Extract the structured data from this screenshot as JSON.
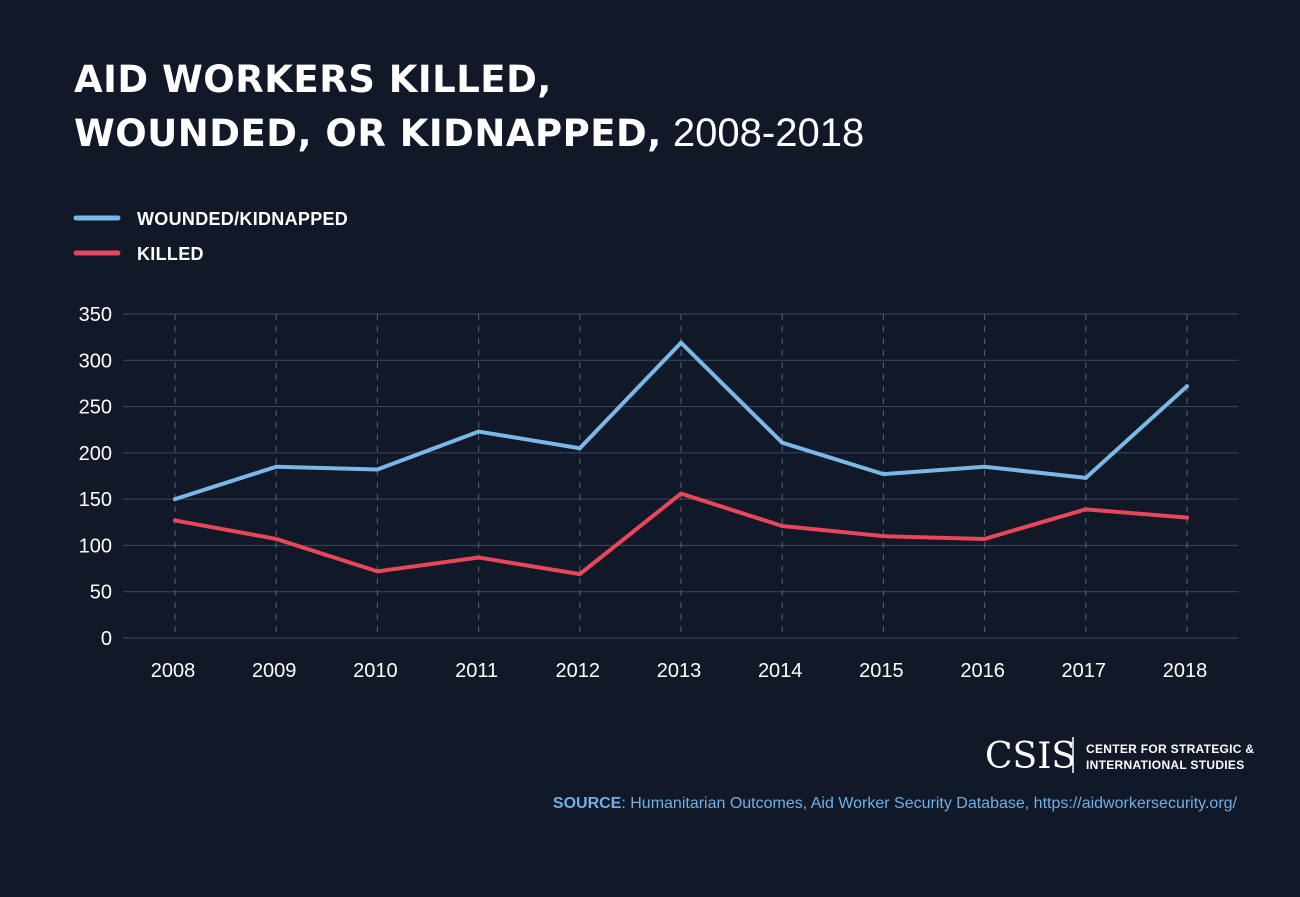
{
  "title": {
    "line1": "AID WORKERS KILLED,",
    "line2_bold": "WOUNDED, OR KIDNAPPED,",
    "line2_light": " 2008-2018"
  },
  "chart_data": {
    "type": "line",
    "title": "AID WORKERS KILLED, WOUNDED, OR KIDNAPPED, 2008-2018",
    "xlabel": "",
    "ylabel": "",
    "x": [
      "2008",
      "2009",
      "2010",
      "2011",
      "2012",
      "2013",
      "2014",
      "2015",
      "2016",
      "2017",
      "2018"
    ],
    "ylim": [
      0,
      350
    ],
    "yticks": [
      0,
      50,
      100,
      150,
      200,
      250,
      300,
      350
    ],
    "grid": true,
    "legend_position": "top-left",
    "series": [
      {
        "name": "WOUNDED/KIDNAPPED",
        "color": "#7ab8e8",
        "values": [
          150,
          185,
          182,
          223,
          205,
          319,
          211,
          177,
          185,
          173,
          272
        ]
      },
      {
        "name": "KILLED",
        "color": "#e8465a",
        "values": [
          127,
          107,
          72,
          87,
          69,
          156,
          121,
          110,
          107,
          139,
          130
        ]
      }
    ]
  },
  "logo": {
    "mark": "CSIS",
    "line1": "CENTER FOR STRATEGIC &",
    "line2": "INTERNATIONAL STUDIES"
  },
  "source": {
    "label": "SOURCE",
    "text": ": Humanitarian Outcomes, Aid Worker Security Database, https://aidworkersecurity.org/"
  }
}
